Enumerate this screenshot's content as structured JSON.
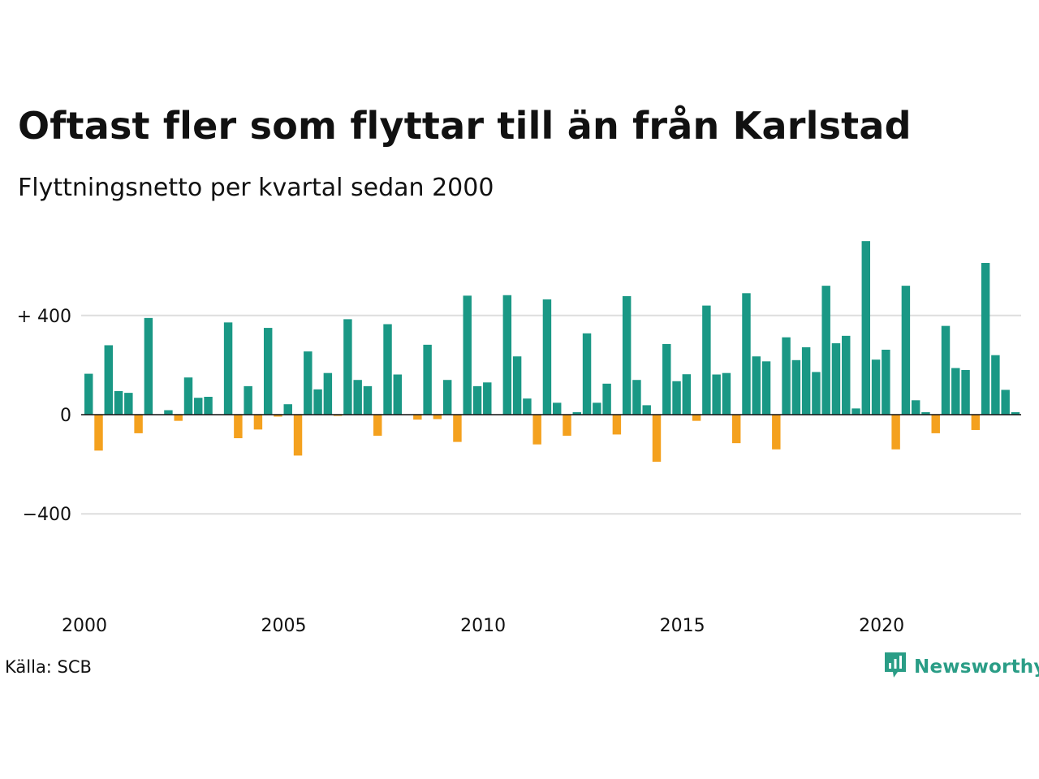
{
  "header": {
    "title": "Oftast fler som flyttar till än från Karlstad",
    "subtitle": "Flyttningsnetto per kvartal sedan 2000"
  },
  "footer": {
    "source": "Källa: SCB",
    "brand": "Newsworthy",
    "brand_icon": "bar-chart-icon"
  },
  "colors": {
    "positive": "#1a9885",
    "negative": "#f4a11e",
    "grid": "#dddddd",
    "zero_line": "#111111",
    "brand": "#2a9d86"
  },
  "chart_data": {
    "type": "bar",
    "title": "Oftast fler som flyttar till än från Karlstad",
    "subtitle": "Flyttningsnetto per kvartal sedan 2000",
    "xlabel": "",
    "ylabel": "",
    "x_start_year": 2000,
    "periods_per_year": 4,
    "x_tick_labels": [
      "2000",
      "2005",
      "2010",
      "2015",
      "2020"
    ],
    "y_ticks": [
      -400,
      0,
      400
    ],
    "y_tick_labels": [
      "−400",
      "0",
      "+ 400"
    ],
    "ylim": [
      -680,
      720
    ],
    "grid": true,
    "legend": "none",
    "values": [
      165,
      -145,
      280,
      95,
      88,
      -75,
      390,
      0,
      18,
      -25,
      150,
      68,
      72,
      0,
      372,
      -95,
      115,
      -60,
      350,
      -8,
      42,
      -165,
      255,
      102,
      168,
      -5,
      385,
      140,
      115,
      -85,
      365,
      162,
      0,
      -20,
      282,
      -18,
      140,
      -110,
      480,
      115,
      130,
      0,
      482,
      235,
      65,
      -120,
      465,
      48,
      -85,
      10,
      328,
      48,
      125,
      -80,
      478,
      140,
      38,
      -190,
      285,
      135,
      163,
      -25,
      440,
      162,
      168,
      -115,
      490,
      235,
      215,
      -140,
      312,
      220,
      272,
      172,
      520,
      288,
      318,
      25,
      700,
      222,
      262,
      -140,
      520,
      58,
      10,
      -75,
      358,
      188,
      180,
      -62,
      612,
      240,
      100,
      10
    ]
  }
}
